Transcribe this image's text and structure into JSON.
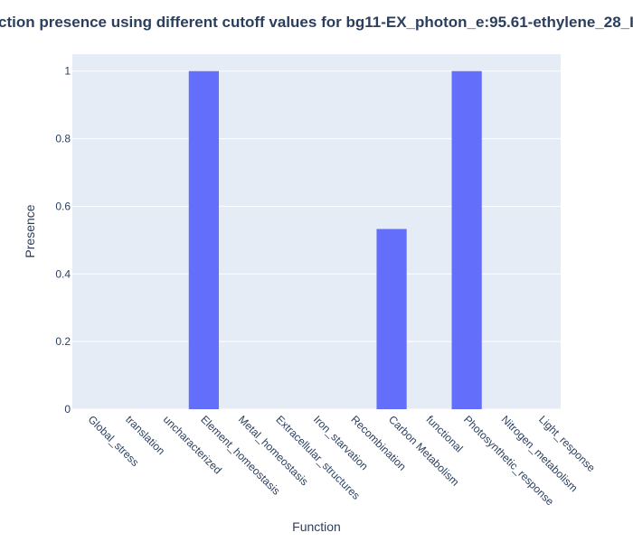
{
  "chart_data": {
    "type": "bar",
    "title": "ction presence using different cutoff values for bg11-EX_photon_e:95.61-ethylene_28_I",
    "xlabel": "Function",
    "ylabel": "Presence",
    "categories": [
      "Global_stress",
      "translation",
      "uncharacterized",
      "Element_homeostasis",
      "Metal_homeostasis",
      "Extracellular_structures",
      "Iron_starvation",
      "Recombination",
      "Carbon Metabolism",
      "functional",
      "Photosynthetic_response",
      "Nitrogen_metabolism",
      "Light_response"
    ],
    "values": [
      0,
      0,
      0,
      1,
      0,
      0,
      0,
      0,
      0.533,
      0,
      1,
      0,
      0
    ],
    "ylim": [
      0,
      1.05
    ],
    "yticks": [
      0,
      0.2,
      0.4,
      0.6,
      0.8,
      1
    ],
    "ytick_labels": [
      "0",
      "0.2",
      "0.4",
      "0.6",
      "0.8",
      "1"
    ],
    "grid": true,
    "bar_color": "#636efa",
    "plot_bg": "#e5ecf6",
    "text_color": "#2a3f5f"
  }
}
